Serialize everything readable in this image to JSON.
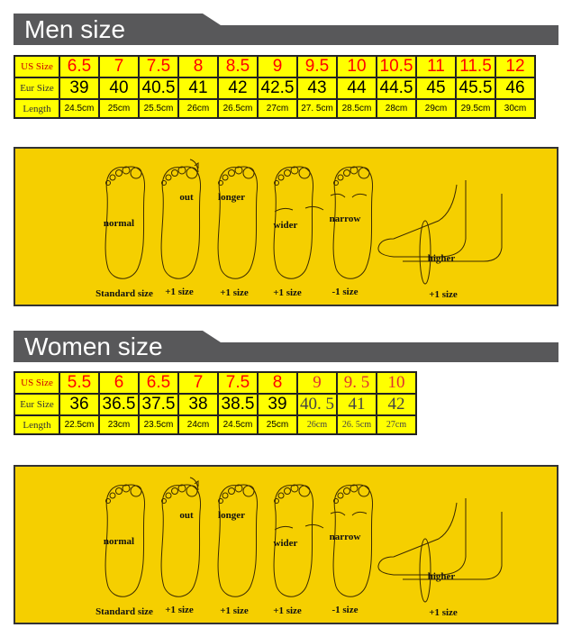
{
  "colors": {
    "band": "#58585a",
    "table_bg": "#ffff00",
    "us_text": "#ff0000",
    "panel_bg": "#f5cf00"
  },
  "men": {
    "title": "Men size",
    "row_labels": {
      "us": "US Size",
      "eur": "Eur Size",
      "length": "Length"
    },
    "us": [
      "6.5",
      "7",
      "7.5",
      "8",
      "8.5",
      "9",
      "9.5",
      "10",
      "10.5",
      "11",
      "11.5",
      "12"
    ],
    "eur": [
      "39",
      "40",
      "40.5",
      "41",
      "42",
      "42.5",
      "43",
      "44",
      "44.5",
      "45",
      "45.5",
      "46"
    ],
    "length": [
      "24.5cm",
      "25cm",
      "25.5cm",
      "26cm",
      "26.5cm",
      "27cm",
      "27. 5cm",
      "28.5cm",
      "28cm",
      "29cm",
      "29.5cm",
      "30cm"
    ]
  },
  "women": {
    "title": "Women size",
    "row_labels": {
      "us": "US Size",
      "eur": "Eur Size",
      "length": "Length"
    },
    "us": [
      "5.5",
      "6",
      "6.5",
      "7",
      "7.5",
      "8",
      "9",
      "9. 5",
      "10"
    ],
    "eur": [
      "36",
      "36.5",
      "37.5",
      "38",
      "38.5",
      "39",
      "40. 5",
      "41",
      "42"
    ],
    "length": [
      "22.5cm",
      "23cm",
      "23.5cm",
      "24cm",
      "24.5cm",
      "25cm",
      "26cm",
      "26. 5cm",
      "27cm"
    ]
  },
  "foot_guide": {
    "feet": [
      {
        "shape": "normal",
        "advice": "Standard size"
      },
      {
        "shape": "out",
        "advice": "+1 size"
      },
      {
        "shape": "longer",
        "advice": "+1 size"
      },
      {
        "shape": "wider",
        "advice": "+1 size"
      },
      {
        "shape": "narrow",
        "advice": "-1 size"
      },
      {
        "shape": "higher",
        "advice": "+1 size"
      }
    ]
  }
}
